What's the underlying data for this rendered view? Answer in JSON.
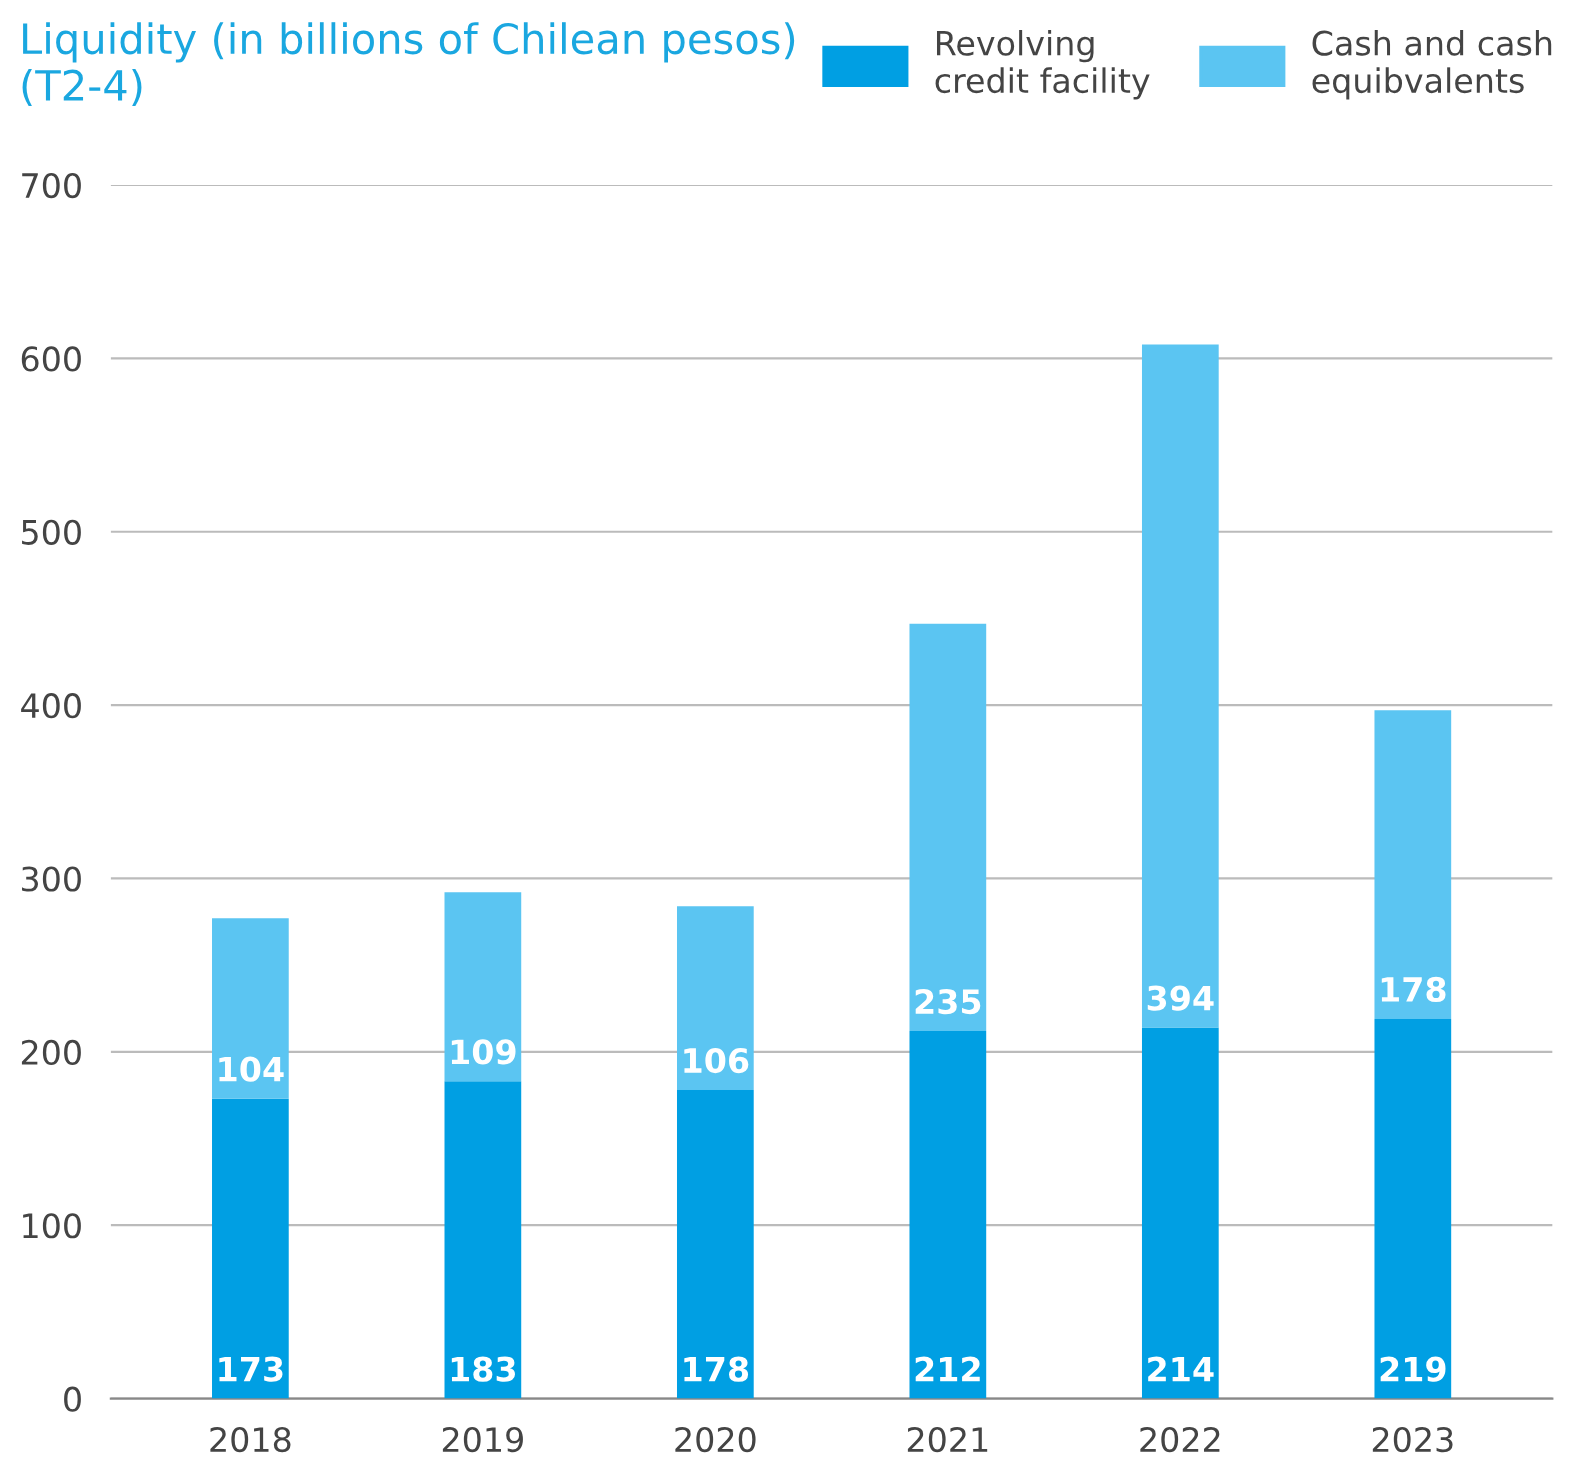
{
  "chart_data": {
    "type": "bar",
    "title": "Liquidity (in billions of Chilean pesos)\n(T2-4)",
    "stacked": true,
    "categories": [
      "2018",
      "2019",
      "2020",
      "2021",
      "2022",
      "2023"
    ],
    "series": [
      {
        "name": "Revolving\ncredit facility",
        "color": "#009fe3",
        "values": [
          173,
          183,
          178,
          212,
          214,
          219
        ]
      },
      {
        "name": "Cash and cash\nequibvalents",
        "color": "#5bc5f2",
        "values": [
          104,
          109,
          106,
          235,
          394,
          178
        ]
      }
    ],
    "data_labels": true,
    "ylim": [
      0,
      700
    ],
    "yticks": [
      0,
      100,
      200,
      300,
      400,
      500,
      600,
      700
    ],
    "grid": "y",
    "legend": "top right"
  }
}
